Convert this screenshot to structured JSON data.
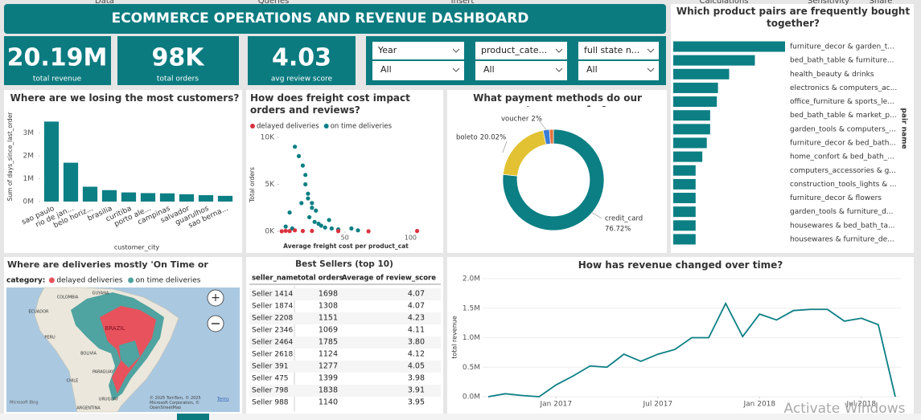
{
  "ribbon": [
    "Data",
    "Queries",
    "Insert",
    "Calculations",
    "Sensitivity",
    "Share"
  ],
  "header": {
    "title": "ECOMMERCE OPERATIONS AND REVENUE DASHBOARD"
  },
  "kpis": [
    {
      "value": "20.19M",
      "label": "total revenue"
    },
    {
      "value": "98K",
      "label": "total orders"
    },
    {
      "value": "4.03",
      "label": "avg review score"
    }
  ],
  "filters": [
    {
      "label": "Year",
      "value": "All"
    },
    {
      "label": "product_cate...",
      "value": "All"
    },
    {
      "label": "full state n...",
      "value": "All"
    }
  ],
  "chart_data": [
    {
      "type": "bar",
      "orientation": "horizontal",
      "title": "Which product pairs are frequently bought together?",
      "y_label": "pair name",
      "color": "#0b7f84",
      "categories": [
        "furniture_decor & garden_t...",
        "bed_bath_table & furniture...",
        "health_beauty & drinks",
        "electronics & computers_ac...",
        "office_furniture & sports_le...",
        "bed_bath_table & market_p...",
        "garden_tools & computers_...",
        "furniture_decor & bed_bath...",
        "home_confort & bed_bath_...",
        "computers_accessories & g...",
        "construction_tools_lights & ...",
        "furniture_decor & flowers",
        "garden_tools & furniture_d...",
        "housewares & bed_bath_ta...",
        "housewares & furniture_de..."
      ],
      "values": [
        100,
        73,
        50,
        40,
        39,
        33,
        33,
        30,
        26,
        20,
        20,
        20,
        20,
        20,
        20
      ]
    },
    {
      "type": "bar",
      "orientation": "vertical",
      "title": "Where are we losing the most customers?",
      "x_label": "customer_city",
      "y_label": "Sum of days_since_last_order",
      "color": "#0b7f84",
      "categories": [
        "sao paulo",
        "rio de jan...",
        "belo horiz...",
        "brasilia",
        "curitiba",
        "porto ale...",
        "campinas",
        "salvador",
        "guarulhos",
        "sao berna..."
      ],
      "values": [
        3500000,
        1700000,
        650000,
        500000,
        400000,
        370000,
        360000,
        320000,
        280000,
        250000
      ],
      "ylim": [
        0,
        3900000
      ],
      "yticks": [
        {
          "value": 0,
          "label": "0M"
        },
        {
          "value": 1000000,
          "label": "1M"
        },
        {
          "value": 2000000,
          "label": "2M"
        },
        {
          "value": 3000000,
          "label": "3M"
        }
      ]
    },
    {
      "type": "scatter",
      "title": "How does freight cost impact orders and reviews?",
      "x_label": "Average freight cost per product_cat",
      "y_label": "Total orders",
      "series": [
        {
          "name": "delayed deliveries",
          "color": "#d9323f",
          "x": [
            2,
            5,
            8,
            12,
            18,
            25,
            45,
            68,
            105
          ],
          "values": [
            0,
            50,
            20,
            100,
            30,
            40,
            20,
            0,
            30
          ]
        },
        {
          "name": "on time deliveries",
          "color": "#0b7f84",
          "x": [
            5,
            8,
            10,
            12,
            15,
            17,
            18,
            20,
            20,
            22,
            22,
            23,
            25,
            25,
            27,
            28,
            30,
            32,
            35,
            38,
            40,
            45,
            55,
            60
          ],
          "values": [
            500,
            2000,
            300,
            9000,
            8000,
            3000,
            7000,
            6000,
            5000,
            4000,
            3500,
            1500,
            3000,
            2500,
            1000,
            2200,
            800,
            600,
            400,
            1200,
            300,
            200,
            300,
            100
          ]
        }
      ],
      "xlim": [
        0,
        112
      ],
      "xticks": [
        50,
        100
      ],
      "ylim": [
        0,
        10000
      ],
      "yticks": [
        {
          "value": 0,
          "label": "0K"
        },
        {
          "value": 5000,
          "label": "5K"
        },
        {
          "value": 10000,
          "label": "10K"
        }
      ]
    },
    {
      "type": "pie",
      "donut": true,
      "title": "What payment methods do our customers prefer?",
      "categories": [
        "credit_card",
        "boleto",
        "voucher",
        null
      ],
      "values": [
        76.72,
        20.02,
        2,
        1.26
      ],
      "value_labels": [
        "76.72%",
        "20.02%",
        "2%",
        null
      ],
      "colors": [
        "#0b7f84",
        "#e2c232",
        "#3a7dd8",
        "#e8703a"
      ]
    },
    {
      "type": "line",
      "title": "How has revenue changed over time?",
      "y_label": "total revenue",
      "color": "#0b7f84",
      "x": [
        "2016-09",
        "2016-10",
        "2016-11",
        "2016-12",
        "2017-01",
        "2017-02",
        "2017-03",
        "2017-04",
        "2017-05",
        "2017-06",
        "2017-07",
        "2017-08",
        "2017-09",
        "2017-10",
        "2017-11",
        "2017-12",
        "2018-01",
        "2018-02",
        "2018-03",
        "2018-04",
        "2018-05",
        "2018-06",
        "2018-07",
        "2018-08",
        "2018-09"
      ],
      "values": [
        0,
        50000,
        20000,
        0,
        200000,
        350000,
        520000,
        500000,
        720000,
        600000,
        720000,
        800000,
        1000000,
        1000000,
        1580000,
        1020000,
        1400000,
        1300000,
        1460000,
        1480000,
        1480000,
        1280000,
        1330000,
        1220000,
        0
      ],
      "ylim": [
        0,
        2000000
      ],
      "yticks": [
        {
          "value": 0,
          "label": "0.0M"
        },
        {
          "value": 500000,
          "label": "0.5M"
        },
        {
          "value": 1000000,
          "label": "1.0M"
        },
        {
          "value": 1500000,
          "label": "1.5M"
        },
        {
          "value": 2000000,
          "label": "2.0M"
        }
      ],
      "xticks": [
        {
          "value": "2017-01",
          "label": "Jan 2017"
        },
        {
          "value": "2017-07",
          "label": "Jul 2017"
        },
        {
          "value": "2018-01",
          "label": "Jan 2018"
        },
        {
          "value": "2018-07",
          "label": "Jul 2018"
        }
      ]
    }
  ],
  "map": {
    "title": "Where are deliveries mostly 'On Time or 'Delayed'",
    "legend_title": "category:",
    "legend": [
      {
        "name": "delayed deliveries",
        "color": "#e8525c"
      },
      {
        "name": "on time deliveries",
        "color": "#4fa3a0"
      }
    ],
    "labels": [
      "COLOMBIA",
      "GUYANA",
      "ECUADOR",
      "PERU",
      "BRAZIL",
      "BOLIVIA",
      "PARAGUAY",
      "CHILE",
      "URUGUAY",
      "ARGENTINA"
    ],
    "attribution": "© 2025 TomTom, © 2025 Microsoft Corporation, © OpenStreetMap",
    "terms": "Terms",
    "bing": "Microsoft Bing"
  },
  "table": {
    "title": "Best Sellers (top 10)",
    "columns": [
      "seller_name",
      "total orders",
      "Average of review_score"
    ],
    "rows": [
      [
        "Seller 1414",
        "1698",
        "4.07"
      ],
      [
        "Seller 1874",
        "1308",
        "4.07"
      ],
      [
        "Seller 2208",
        "1151",
        "4.23"
      ],
      [
        "Seller 2346",
        "1069",
        "4.11"
      ],
      [
        "Seller 2464",
        "1785",
        "3.80"
      ],
      [
        "Seller 2618",
        "1124",
        "4.12"
      ],
      [
        "Seller 391",
        "1277",
        "4.05"
      ],
      [
        "Seller 475",
        "1399",
        "3.98"
      ],
      [
        "Seller 798",
        "1838",
        "3.91"
      ],
      [
        "Seller 988",
        "1140",
        "3.95"
      ]
    ]
  },
  "watermark": "Activate Windows"
}
